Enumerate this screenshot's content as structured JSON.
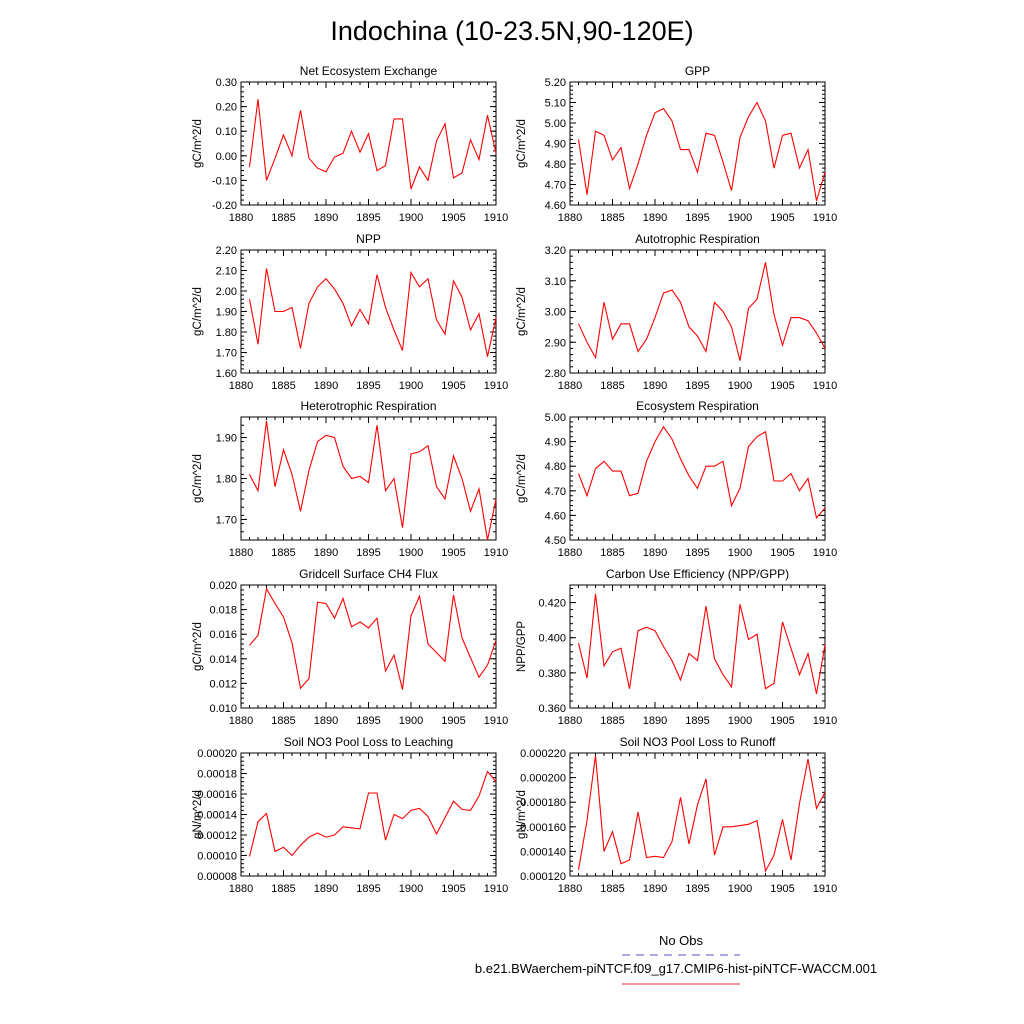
{
  "figure": {
    "title": "Indochina (10-23.5N,90-120E)"
  },
  "legend": {
    "obs_label": "No Obs",
    "model_label": "b.e21.BWaerchem-piNTCF.f09_g17.CMIP6-hist-piNTCF-WACCM.001",
    "obs_color": "#5555cc",
    "model_color": "#e8303a"
  },
  "chart_data": [
    {
      "type": "line",
      "title": "Net Ecosystem Exchange",
      "ylabel": "gC/m^2/d",
      "xlim": [
        1880,
        1910
      ],
      "ylim": [
        -0.2,
        0.3
      ],
      "xticks": [
        "1880",
        "1885",
        "1890",
        "1895",
        "1900",
        "1905",
        "1910"
      ],
      "yticks": [
        "-0.20",
        "-0.10",
        "0.00",
        "0.10",
        "0.20",
        "0.30"
      ],
      "color": "#ff0000",
      "x": [
        1881,
        1882,
        1883,
        1884,
        1885,
        1886,
        1887,
        1888,
        1889,
        1890,
        1891,
        1892,
        1893,
        1894,
        1895,
        1896,
        1897,
        1898,
        1899,
        1900,
        1901,
        1902,
        1903,
        1904,
        1905,
        1906,
        1907,
        1908,
        1909,
        1910
      ],
      "values": [
        -0.045,
        0.23,
        -0.1,
        -0.01,
        0.085,
        0.0,
        0.185,
        -0.01,
        -0.05,
        -0.065,
        -0.005,
        0.01,
        0.1,
        0.015,
        0.09,
        -0.06,
        -0.04,
        0.15,
        0.15,
        -0.135,
        -0.045,
        -0.1,
        0.06,
        0.13,
        -0.09,
        -0.07,
        0.065,
        -0.015,
        0.165,
        0.01
      ]
    },
    {
      "type": "line",
      "title": "GPP",
      "ylabel": "gC/m^2/d",
      "xlim": [
        1880,
        1910
      ],
      "ylim": [
        4.6,
        5.2
      ],
      "xticks": [
        "1880",
        "1885",
        "1890",
        "1895",
        "1900",
        "1905",
        "1910"
      ],
      "yticks": [
        "4.60",
        "4.70",
        "4.80",
        "4.90",
        "5.00",
        "5.10",
        "5.20"
      ],
      "color": "#ff0000",
      "x": [
        1881,
        1882,
        1883,
        1884,
        1885,
        1886,
        1887,
        1888,
        1889,
        1890,
        1891,
        1892,
        1893,
        1894,
        1895,
        1896,
        1897,
        1898,
        1899,
        1900,
        1901,
        1902,
        1903,
        1904,
        1905,
        1906,
        1907,
        1908,
        1909,
        1910
      ],
      "values": [
        4.92,
        4.65,
        4.96,
        4.94,
        4.82,
        4.88,
        4.68,
        4.8,
        4.94,
        5.05,
        5.07,
        5.01,
        4.87,
        4.87,
        4.76,
        4.95,
        4.94,
        4.81,
        4.67,
        4.93,
        5.03,
        5.1,
        5.01,
        4.78,
        4.94,
        4.95,
        4.78,
        4.87,
        4.62,
        4.76
      ]
    },
    {
      "type": "line",
      "title": "NPP",
      "ylabel": "gC/m^2/d",
      "xlim": [
        1880,
        1910
      ],
      "ylim": [
        1.6,
        2.2
      ],
      "xticks": [
        "1880",
        "1885",
        "1890",
        "1895",
        "1900",
        "1905",
        "1910"
      ],
      "yticks": [
        "1.60",
        "1.70",
        "1.80",
        "1.90",
        "2.00",
        "2.10",
        "2.20"
      ],
      "color": "#ff0000",
      "x": [
        1881,
        1882,
        1883,
        1884,
        1885,
        1886,
        1887,
        1888,
        1889,
        1890,
        1891,
        1892,
        1893,
        1894,
        1895,
        1896,
        1897,
        1898,
        1899,
        1900,
        1901,
        1902,
        1903,
        1904,
        1905,
        1906,
        1907,
        1908,
        1909,
        1910
      ],
      "values": [
        1.96,
        1.74,
        2.11,
        1.9,
        1.9,
        1.92,
        1.72,
        1.94,
        2.02,
        2.06,
        2.01,
        1.94,
        1.83,
        1.91,
        1.84,
        2.08,
        1.92,
        1.81,
        1.71,
        2.09,
        2.02,
        2.06,
        1.86,
        1.79,
        2.05,
        1.97,
        1.81,
        1.89,
        1.68,
        1.87
      ]
    },
    {
      "type": "line",
      "title": "Autotrophic Respiration",
      "ylabel": "gC/m^2/d",
      "xlim": [
        1880,
        1910
      ],
      "ylim": [
        2.8,
        3.2
      ],
      "xticks": [
        "1880",
        "1885",
        "1890",
        "1895",
        "1900",
        "1905",
        "1910"
      ],
      "yticks": [
        "2.80",
        "2.90",
        "3.00",
        "3.10",
        "3.20"
      ],
      "color": "#ff0000",
      "x": [
        1881,
        1882,
        1883,
        1884,
        1885,
        1886,
        1887,
        1888,
        1889,
        1890,
        1891,
        1892,
        1893,
        1894,
        1895,
        1896,
        1897,
        1898,
        1899,
        1900,
        1901,
        1902,
        1903,
        1904,
        1905,
        1906,
        1907,
        1908,
        1909,
        1910
      ],
      "values": [
        2.96,
        2.9,
        2.85,
        3.03,
        2.91,
        2.96,
        2.96,
        2.87,
        2.91,
        2.98,
        3.06,
        3.07,
        3.03,
        2.95,
        2.92,
        2.87,
        3.03,
        3.0,
        2.95,
        2.84,
        3.01,
        3.04,
        3.16,
        2.99,
        2.89,
        2.98,
        2.98,
        2.97,
        2.93,
        2.88
      ]
    },
    {
      "type": "line",
      "title": "Heterotrophic Respiration",
      "ylabel": "gC/m^2/d",
      "xlim": [
        1880,
        1910
      ],
      "ylim": [
        1.65,
        1.95
      ],
      "xticks": [
        "1880",
        "1885",
        "1890",
        "1895",
        "1900",
        "1905",
        "1910"
      ],
      "yticks": [
        "1.70",
        "1.80",
        "1.90"
      ],
      "yticks_at": [
        1.7,
        1.8,
        1.9
      ],
      "color": "#ff0000",
      "x": [
        1881,
        1882,
        1883,
        1884,
        1885,
        1886,
        1887,
        1888,
        1889,
        1890,
        1891,
        1892,
        1893,
        1894,
        1895,
        1896,
        1897,
        1898,
        1899,
        1900,
        1901,
        1902,
        1903,
        1904,
        1905,
        1906,
        1907,
        1908,
        1909,
        1910
      ],
      "values": [
        1.81,
        1.77,
        1.94,
        1.78,
        1.87,
        1.81,
        1.72,
        1.82,
        1.89,
        1.905,
        1.9,
        1.83,
        1.8,
        1.805,
        1.79,
        1.93,
        1.77,
        1.8,
        1.68,
        1.86,
        1.865,
        1.88,
        1.78,
        1.75,
        1.855,
        1.8,
        1.72,
        1.775,
        1.65,
        1.75
      ]
    },
    {
      "type": "line",
      "title": "Ecosystem Respiration",
      "ylabel": "gC/m^2/d",
      "xlim": [
        1880,
        1910
      ],
      "ylim": [
        4.5,
        5.0
      ],
      "xticks": [
        "1880",
        "1885",
        "1890",
        "1895",
        "1900",
        "1905",
        "1910"
      ],
      "yticks": [
        "4.50",
        "4.60",
        "4.70",
        "4.80",
        "4.90",
        "5.00"
      ],
      "color": "#ff0000",
      "x": [
        1881,
        1882,
        1883,
        1884,
        1885,
        1886,
        1887,
        1888,
        1889,
        1890,
        1891,
        1892,
        1893,
        1894,
        1895,
        1896,
        1897,
        1898,
        1899,
        1900,
        1901,
        1902,
        1903,
        1904,
        1905,
        1906,
        1907,
        1908,
        1909,
        1910
      ],
      "values": [
        4.77,
        4.68,
        4.79,
        4.82,
        4.78,
        4.78,
        4.68,
        4.69,
        4.82,
        4.9,
        4.96,
        4.91,
        4.83,
        4.76,
        4.71,
        4.8,
        4.8,
        4.82,
        4.64,
        4.71,
        4.88,
        4.92,
        4.94,
        4.74,
        4.74,
        4.77,
        4.7,
        4.75,
        4.59,
        4.63
      ]
    },
    {
      "type": "line",
      "title": "Gridcell Surface CH4 Flux",
      "ylabel": "gC/m^2/d",
      "xlim": [
        1880,
        1910
      ],
      "ylim": [
        0.01,
        0.02
      ],
      "xticks": [
        "1880",
        "1885",
        "1890",
        "1895",
        "1900",
        "1905",
        "1910"
      ],
      "yticks": [
        "0.010",
        "0.012",
        "0.014",
        "0.016",
        "0.018",
        "0.020"
      ],
      "color": "#ff0000",
      "x": [
        1881,
        1882,
        1883,
        1884,
        1885,
        1886,
        1887,
        1888,
        1889,
        1890,
        1891,
        1892,
        1893,
        1894,
        1895,
        1896,
        1897,
        1898,
        1899,
        1900,
        1901,
        1902,
        1903,
        1904,
        1905,
        1906,
        1907,
        1908,
        1909,
        1910
      ],
      "values": [
        0.0151,
        0.0159,
        0.0197,
        0.0185,
        0.0174,
        0.0153,
        0.0116,
        0.0124,
        0.0186,
        0.0185,
        0.0173,
        0.0189,
        0.0166,
        0.017,
        0.0165,
        0.0173,
        0.013,
        0.0143,
        0.0115,
        0.0175,
        0.0191,
        0.0152,
        0.0145,
        0.0138,
        0.0192,
        0.0157,
        0.0141,
        0.0125,
        0.0135,
        0.0155
      ]
    },
    {
      "type": "line",
      "title": "Carbon Use Efficiency (NPP/GPP)",
      "ylabel": "NPP/GPP",
      "xlim": [
        1880,
        1910
      ],
      "ylim": [
        0.36,
        0.43
      ],
      "xticks": [
        "1880",
        "1885",
        "1890",
        "1895",
        "1900",
        "1905",
        "1910"
      ],
      "yticks": [
        "0.360",
        "0.380",
        "0.400",
        "0.420"
      ],
      "yticks_at": [
        0.36,
        0.38,
        0.4,
        0.42
      ],
      "color": "#ff0000",
      "x": [
        1881,
        1882,
        1883,
        1884,
        1885,
        1886,
        1887,
        1888,
        1889,
        1890,
        1891,
        1892,
        1893,
        1894,
        1895,
        1896,
        1897,
        1898,
        1899,
        1900,
        1901,
        1902,
        1903,
        1904,
        1905,
        1906,
        1907,
        1908,
        1909,
        1910
      ],
      "values": [
        0.397,
        0.377,
        0.425,
        0.384,
        0.392,
        0.394,
        0.371,
        0.404,
        0.406,
        0.404,
        0.395,
        0.387,
        0.376,
        0.391,
        0.387,
        0.418,
        0.388,
        0.379,
        0.372,
        0.419,
        0.399,
        0.402,
        0.371,
        0.374,
        0.409,
        0.394,
        0.379,
        0.391,
        0.368,
        0.396
      ]
    },
    {
      "type": "line",
      "title": "Soil NO3 Pool Loss to Leaching",
      "ylabel": "gN/m^2/d",
      "xlim": [
        1880,
        1910
      ],
      "ylim": [
        8e-05,
        0.0002
      ],
      "xticks": [
        "1880",
        "1885",
        "1890",
        "1895",
        "1900",
        "1905",
        "1910"
      ],
      "yticks": [
        "0.00008",
        "0.00010",
        "0.00012",
        "0.00014",
        "0.00016",
        "0.00018",
        "0.00020"
      ],
      "color": "#ff0000",
      "x": [
        1881,
        1882,
        1883,
        1884,
        1885,
        1886,
        1887,
        1888,
        1889,
        1890,
        1891,
        1892,
        1893,
        1894,
        1895,
        1896,
        1897,
        1898,
        1899,
        1900,
        1901,
        1902,
        1903,
        1904,
        1905,
        1906,
        1907,
        1908,
        1909,
        1910
      ],
      "values": [
        9.9e-05,
        0.000133,
        0.000141,
        0.000104,
        0.000108,
        0.0001,
        0.00011,
        0.000118,
        0.000122,
        0.000118,
        0.00012,
        0.000128,
        0.000127,
        0.000126,
        0.000161,
        0.000161,
        0.000115,
        0.00014,
        0.000136,
        0.000144,
        0.000146,
        0.000138,
        0.000121,
        0.000137,
        0.000153,
        0.000145,
        0.000144,
        0.000158,
        0.000182,
        0.000172
      ]
    },
    {
      "type": "line",
      "title": "Soil NO3 Pool Loss to Runoff",
      "ylabel": "gN/m^2/d",
      "xlim": [
        1880,
        1910
      ],
      "ylim": [
        0.00012,
        0.00022
      ],
      "xticks": [
        "1880",
        "1885",
        "1890",
        "1895",
        "1900",
        "1905",
        "1910"
      ],
      "yticks": [
        "0.000120",
        "0.000140",
        "0.000160",
        "0.000180",
        "0.000200",
        "0.000220"
      ],
      "color": "#ff0000",
      "x": [
        1881,
        1882,
        1883,
        1884,
        1885,
        1886,
        1887,
        1888,
        1889,
        1890,
        1891,
        1892,
        1893,
        1894,
        1895,
        1896,
        1897,
        1898,
        1899,
        1900,
        1901,
        1902,
        1903,
        1904,
        1905,
        1906,
        1907,
        1908,
        1909,
        1910
      ],
      "values": [
        0.000125,
        0.000165,
        0.000218,
        0.00014,
        0.000156,
        0.00013,
        0.000133,
        0.000172,
        0.000135,
        0.000136,
        0.000135,
        0.000148,
        0.000184,
        0.000146,
        0.000178,
        0.000199,
        0.000137,
        0.00016,
        0.00016,
        0.000161,
        0.000162,
        0.000165,
        0.000124,
        0.000137,
        0.000166,
        0.000133,
        0.000179,
        0.000215,
        0.000175,
        0.000188
      ]
    }
  ]
}
